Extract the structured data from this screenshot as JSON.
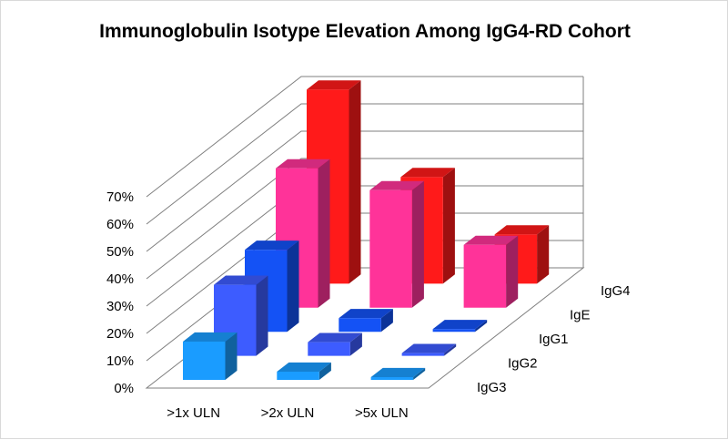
{
  "chart_data": {
    "type": "bar",
    "subtype": "3d-column",
    "title": "Immunoglobulin Isotype Elevation Among IgG4-RD Cohort",
    "categories": [
      ">1x ULN",
      ">2x ULN",
      ">5x ULN"
    ],
    "series": [
      {
        "name": "IgG3",
        "values": [
          14,
          3,
          1
        ],
        "color": "#1a9cff"
      },
      {
        "name": "IgG2",
        "values": [
          26,
          5,
          1
        ],
        "color": "#3d5cff"
      },
      {
        "name": "IgG1",
        "values": [
          30,
          5,
          1
        ],
        "color": "#1452f5"
      },
      {
        "name": "IgE",
        "values": [
          51,
          43,
          23
        ],
        "color": "#ff3399"
      },
      {
        "name": "IgG4",
        "values": [
          71,
          39,
          18
        ],
        "color": "#ff1a1a"
      }
    ],
    "ylim": [
      0,
      70
    ],
    "ytick_labels": [
      "0%",
      "10%",
      "20%",
      "30%",
      "40%",
      "50%",
      "60%",
      "70%"
    ],
    "grid": true,
    "legend": "depth-axis labels at right"
  }
}
